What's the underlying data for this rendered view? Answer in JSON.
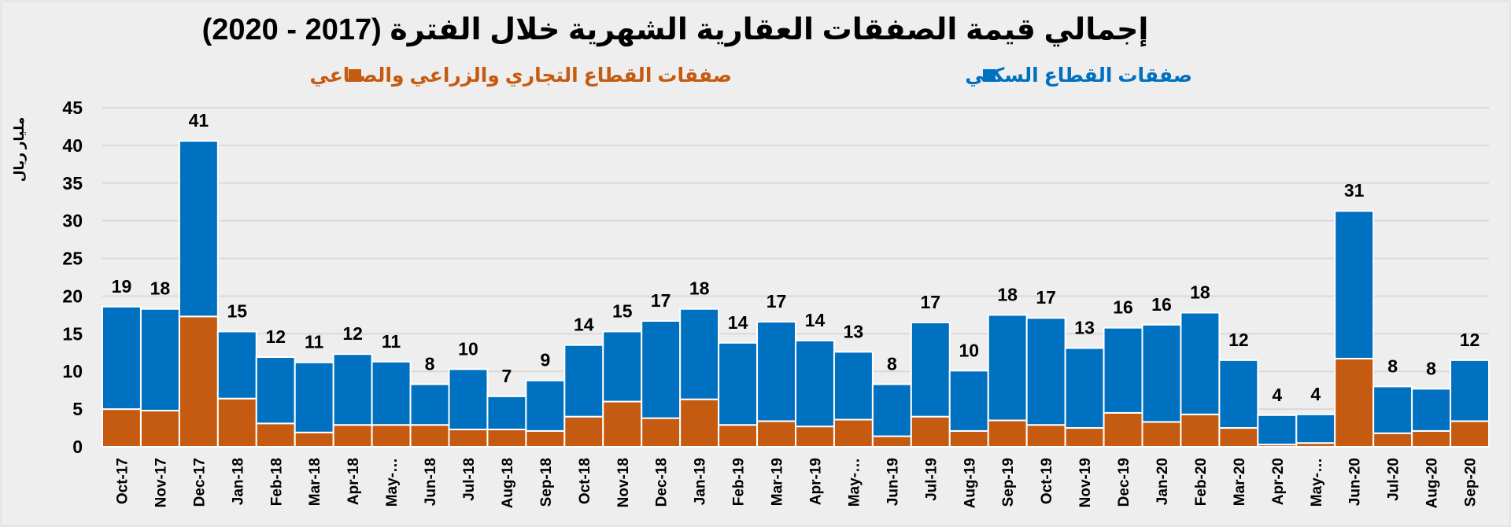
{
  "chart_data": {
    "type": "bar",
    "stacked": true,
    "title": "إجمالي قيمة الصفقات العقارية الشهرية خلال الفترة (2017 - 2020)",
    "ylabel": "مليار ريال",
    "xlabel": "",
    "ylim": [
      0,
      45
    ],
    "yticks": [
      0,
      5,
      10,
      15,
      20,
      25,
      30,
      35,
      40,
      45
    ],
    "grid": true,
    "legend_position": "top",
    "categories": [
      "Oct-17",
      "Nov-17",
      "Dec-17",
      "Jan-18",
      "Feb-18",
      "Mar-18",
      "Apr-18",
      "May-…",
      "Jun-18",
      "Jul-18",
      "Aug-18",
      "Sep-18",
      "Oct-18",
      "Nov-18",
      "Dec-18",
      "Jan-19",
      "Feb-19",
      "Mar-19",
      "Apr-19",
      "May-…",
      "Jun-19",
      "Jul-19",
      "Aug-19",
      "Sep-19",
      "Oct-19",
      "Nov-19",
      "Dec-19",
      "Jan-20",
      "Feb-20",
      "Mar-20",
      "Apr-20",
      "May-…",
      "Jun-20",
      "Jul-20",
      "Aug-20",
      "Sep-20"
    ],
    "series": [
      {
        "name": "صفقات القطاع التجاري والزراعي والصناعي",
        "color": "#c55a11",
        "values": [
          5.0,
          4.8,
          17.3,
          6.4,
          3.1,
          1.9,
          2.9,
          2.9,
          2.9,
          2.3,
          2.3,
          2.1,
          4.0,
          6.0,
          3.8,
          6.3,
          2.9,
          3.4,
          2.7,
          3.6,
          1.4,
          4.0,
          2.1,
          3.5,
          2.9,
          2.5,
          4.5,
          3.3,
          4.3,
          2.5,
          0.3,
          0.5,
          11.7,
          1.8,
          2.1,
          3.4
        ]
      },
      {
        "name": "صفقات القطاع السكني",
        "color": "#0070c0",
        "values": [
          13.6,
          13.5,
          23.3,
          8.9,
          8.8,
          9.3,
          9.4,
          8.4,
          5.4,
          8.0,
          4.4,
          6.7,
          9.5,
          9.3,
          12.9,
          12.0,
          10.9,
          13.2,
          11.4,
          9.0,
          6.9,
          12.5,
          8.0,
          14.0,
          14.2,
          10.6,
          11.3,
          12.9,
          13.5,
          9.0,
          3.9,
          3.8,
          19.6,
          6.2,
          5.6,
          8.1
        ]
      }
    ],
    "totals_labels": [
      "19",
      "18",
      "41",
      "15",
      "12",
      "11",
      "12",
      "11",
      "8",
      "10",
      "7",
      "9",
      "14",
      "15",
      "17",
      "18",
      "14",
      "17",
      "14",
      "13",
      "8",
      "17",
      "10",
      "18",
      "17",
      "13",
      "16",
      "16",
      "18",
      "12",
      "4",
      "4",
      "31",
      "8",
      "8",
      "12"
    ]
  }
}
